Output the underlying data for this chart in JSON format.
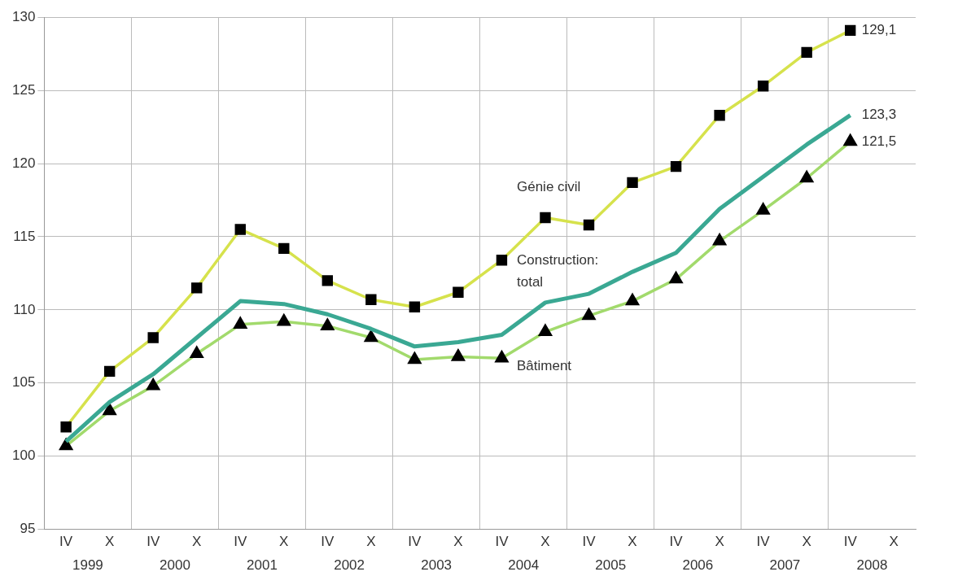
{
  "chart_data": {
    "type": "line",
    "categories": [
      "IV",
      "X",
      "IV",
      "X",
      "IV",
      "X",
      "IV",
      "X",
      "IV",
      "X",
      "IV",
      "X",
      "IV",
      "X",
      "IV",
      "X",
      "IV",
      "X",
      "IV",
      "X"
    ],
    "annotations": [
      "1999",
      "2000",
      "2001",
      "2002",
      "2003",
      "2004",
      "2005",
      "2006",
      "2007",
      "2008"
    ],
    "ylim": [
      95,
      130
    ],
    "yticks": [
      95,
      100,
      105,
      110,
      115,
      120,
      125,
      130
    ],
    "grid": true,
    "legend": false,
    "series": [
      {
        "name": "Génie civil",
        "color": "#d6e24c",
        "marker": "square",
        "values": [
          102,
          105.8,
          108.1,
          111.5,
          115.5,
          114.2,
          112,
          110.7,
          110.2,
          111.2,
          113.4,
          116.3,
          115.8,
          118.7,
          119.8,
          123.3,
          125.3,
          127.6,
          129.1,
          null
        ],
        "value_labels": [
          null,
          null,
          null,
          null,
          null,
          null,
          null,
          null,
          null,
          null,
          null,
          null,
          null,
          null,
          null,
          null,
          null,
          null,
          "129,1",
          null
        ]
      },
      {
        "name": "Construction: total",
        "color": "#3aa893",
        "marker": "none",
        "values": [
          101,
          103.7,
          105.6,
          108.1,
          110.6,
          110.4,
          109.7,
          108.7,
          107.5,
          107.8,
          108.3,
          110.5,
          111.1,
          112.6,
          113.9,
          116.9,
          119.1,
          121.3,
          123.3,
          null
        ],
        "value_labels": [
          null,
          null,
          null,
          null,
          null,
          null,
          null,
          null,
          null,
          null,
          null,
          null,
          null,
          null,
          null,
          null,
          null,
          null,
          "123,3",
          null
        ]
      },
      {
        "name": "Bâtiment",
        "color": "#a2da6c",
        "marker": "triangle",
        "values": [
          100.7,
          103.1,
          104.8,
          107,
          109,
          109.2,
          108.9,
          108.1,
          106.6,
          106.8,
          106.7,
          108.5,
          109.6,
          110.6,
          112.1,
          114.7,
          116.8,
          119,
          121.5,
          null
        ],
        "value_labels": [
          null,
          null,
          null,
          null,
          null,
          null,
          null,
          null,
          null,
          null,
          null,
          null,
          null,
          null,
          null,
          null,
          null,
          null,
          "121,5",
          null
        ]
      }
    ]
  }
}
